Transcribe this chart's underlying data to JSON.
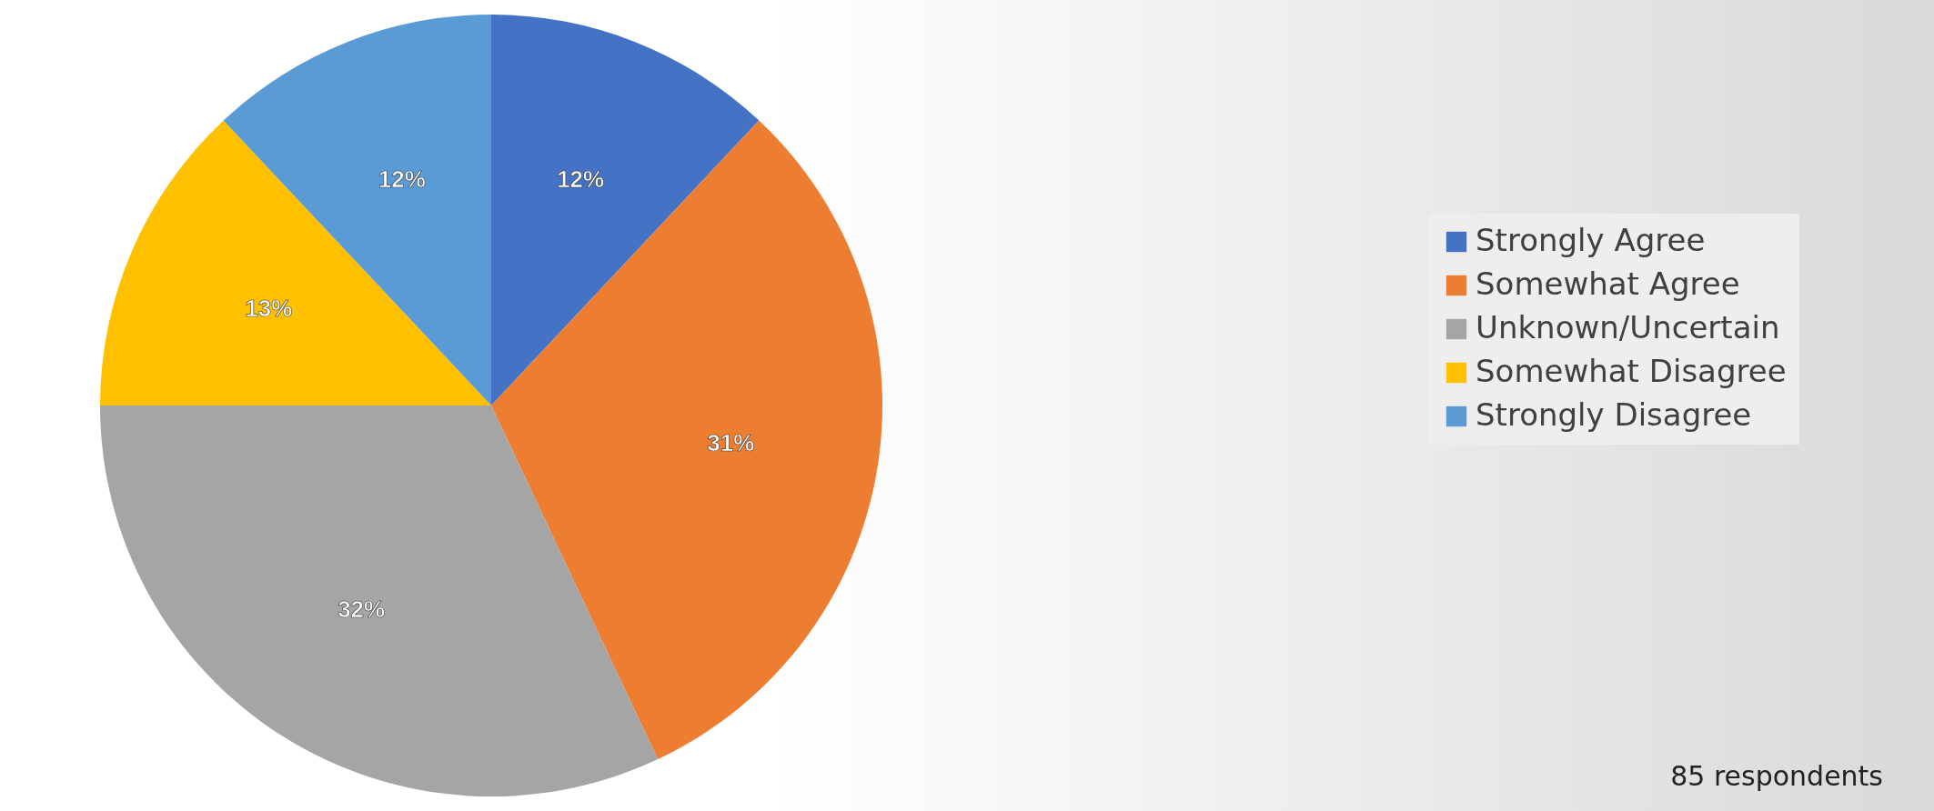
{
  "chart_data": {
    "type": "pie",
    "categories": [
      "Strongly Agree",
      "Somewhat Agree",
      "Unknown/Uncertain",
      "Somewhat Disagree",
      "Strongly Disagree"
    ],
    "values": [
      12,
      31,
      32,
      13,
      12
    ],
    "colors": [
      "#4472c4",
      "#ed7d31",
      "#a5a5a5",
      "#ffc000",
      "#5b9bd5"
    ],
    "value_labels": [
      "12%",
      "31%",
      "32%",
      "13%",
      "12%"
    ],
    "legend": "right",
    "annotations": [
      "85 respondents"
    ]
  }
}
